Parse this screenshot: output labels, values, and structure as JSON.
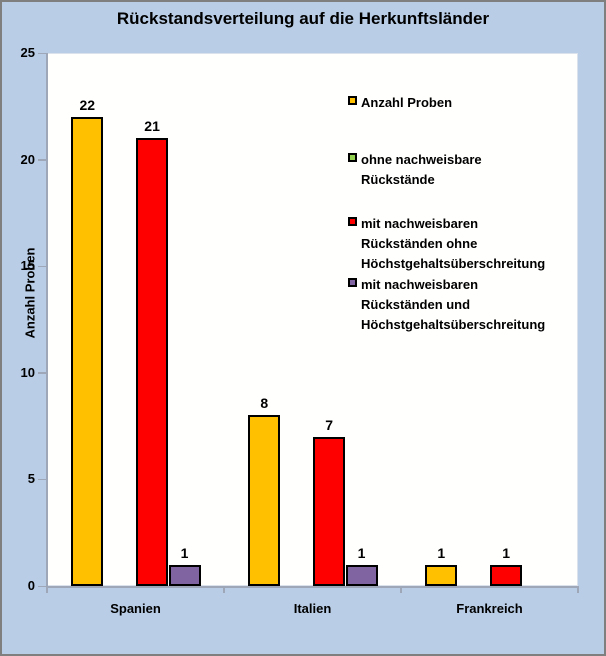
{
  "window": {
    "background_color": "#B9CDE6",
    "border_color": "#7F7F7F",
    "plot_background_color": "#FFFFFE"
  },
  "chart_data": {
    "type": "bar",
    "title": "Rückstandsverteilung auf die Herkunftsländer",
    "xlabel": "",
    "ylabel": "Anzahl Proben",
    "ylim": [
      0,
      25
    ],
    "yticks": [
      0,
      5,
      10,
      15,
      20,
      25
    ],
    "grid": false,
    "bar_value_labels_shown": true,
    "legend_position": "inside-top-right",
    "categories": [
      "Spanien",
      "Italien",
      "Frankreich"
    ],
    "series": [
      {
        "name": "Anzahl Proben",
        "color": "#FFC000",
        "values": [
          22,
          8,
          1
        ]
      },
      {
        "name": "ohne nachweisbare Rückstände",
        "color": "#92D050",
        "values": [
          0,
          0,
          0
        ]
      },
      {
        "name": "mit nachweisbaren Rückständen ohne Höchstgehaltsüberschreitung",
        "color": "#FF0000",
        "values": [
          21,
          7,
          1
        ]
      },
      {
        "name": "mit nachweisbaren Rückständen und Höchstgehaltsüberschreitung",
        "color": "#8064A2",
        "values": [
          1,
          1,
          0
        ]
      }
    ]
  },
  "legend": {
    "items": [
      {
        "color": "#FFC000",
        "lines": [
          "Anzahl Proben"
        ]
      },
      {
        "color": "#92D050",
        "lines": [
          "ohne nachweisbare",
          "Rückstände"
        ]
      },
      {
        "color": "#FF0000",
        "lines": [
          "mit nachweisbaren",
          "Rückständen ohne",
          "Höchstgehaltsüberschreitung"
        ]
      },
      {
        "color": "#8064A2",
        "lines": [
          "mit nachweisbaren",
          "Rückständen und",
          "Höchstgehaltsüberschreitung"
        ]
      }
    ]
  }
}
